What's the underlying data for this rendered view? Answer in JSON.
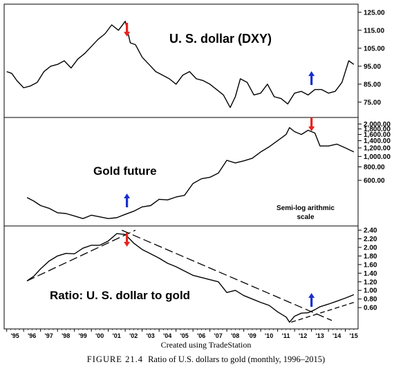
{
  "chart_data": [
    {
      "type": "line",
      "title": "U. S. dollar (DXY)",
      "y_ticks": [
        "125.00",
        "115.00",
        "105.00",
        "95.00",
        "85.00",
        "75.00"
      ],
      "y_tick_values": [
        125,
        115,
        105,
        95,
        85,
        75
      ],
      "ylim": [
        68,
        128
      ],
      "series": [
        {
          "x": [
            1995.0,
            1995.3,
            1995.6,
            1996.0,
            1996.4,
            1996.8,
            1997.2,
            1997.6,
            1998.0,
            1998.4,
            1998.8,
            1999.2,
            1999.6,
            2000.0,
            2000.4,
            2000.8,
            2001.2,
            2001.6,
            2002.0,
            2002.3,
            2002.6,
            2003.0,
            2003.4,
            2003.8,
            2004.2,
            2004.6,
            2005.0,
            2005.4,
            2005.8,
            2006.2,
            2006.6,
            2007.0,
            2007.4,
            2007.8,
            2008.2,
            2008.5,
            2008.8,
            2009.2,
            2009.6,
            2010.0,
            2010.4,
            2010.8,
            2011.2,
            2011.6,
            2012.0,
            2012.4,
            2012.8,
            2013.2,
            2013.6,
            2014.0,
            2014.4,
            2014.8,
            2015.2,
            2015.5
          ],
          "values": [
            92,
            91,
            87,
            83,
            84,
            86,
            92,
            95,
            96,
            98,
            94,
            99,
            102,
            106,
            110,
            113,
            118,
            115,
            120,
            108,
            107,
            100,
            96,
            92,
            90,
            88,
            85,
            90,
            92,
            88,
            87,
            85,
            82,
            79,
            72,
            78,
            88,
            86,
            79,
            80,
            85,
            78,
            77,
            74,
            80,
            81,
            79,
            82,
            82,
            80,
            81,
            86,
            98,
            96
          ]
        }
      ],
      "annotations": [
        {
          "x": 2002.1,
          "direction": "down",
          "color": "#e8231e"
        },
        {
          "x": 2013.0,
          "direction": "up",
          "color": "#1a2fd0"
        }
      ]
    },
    {
      "type": "line",
      "title": "Gold future",
      "y_ticks": [
        "2,000.00",
        "1,800.00",
        "1,600.00",
        "1,400.00",
        "1,200.00",
        "1,000.00",
        "800.00",
        "600.00"
      ],
      "y_tick_values": [
        2000,
        1800,
        1600,
        1400,
        1200,
        1000,
        800,
        600
      ],
      "ylim": [
        240,
        2200
      ],
      "y_scale": "log",
      "note": "Semi-logarithmic scale",
      "note_lines": [
        "Semi-log arithmic",
        "scale"
      ],
      "series": [
        {
          "x": [
            1996.2,
            1996.6,
            1997.0,
            1997.5,
            1998.0,
            1998.5,
            1999.0,
            1999.5,
            2000.0,
            2000.5,
            2001.0,
            2001.5,
            2002.0,
            2002.5,
            2003.0,
            2003.5,
            2004.0,
            2004.5,
            2005.0,
            2005.5,
            2006.0,
            2006.5,
            2007.0,
            2007.5,
            2008.0,
            2008.5,
            2009.0,
            2009.5,
            2010.0,
            2010.5,
            2011.0,
            2011.5,
            2011.7,
            2012.0,
            2012.4,
            2012.8,
            2013.2,
            2013.5,
            2014.0,
            2014.5,
            2015.0,
            2015.5
          ],
          "values": [
            415,
            385,
            350,
            330,
            300,
            295,
            280,
            265,
            285,
            275,
            265,
            270,
            290,
            310,
            340,
            350,
            400,
            395,
            420,
            435,
            560,
            620,
            640,
            700,
            920,
            870,
            910,
            960,
            1100,
            1230,
            1400,
            1600,
            1850,
            1700,
            1600,
            1750,
            1650,
            1250,
            1250,
            1300,
            1200,
            1100
          ]
        }
      ],
      "annotations": [
        {
          "x": 2002.1,
          "direction": "up",
          "color": "#1a2fd0"
        },
        {
          "x": 2013.0,
          "direction": "down",
          "color": "#e8231e"
        }
      ]
    },
    {
      "type": "line",
      "title": "Ratio: U. S. dollar to gold",
      "y_ticks": [
        "2.40",
        "2.20",
        "2.00",
        "1.80",
        "1.60",
        "1.40",
        "1.20",
        "1.00",
        "0.80",
        "0.60"
      ],
      "y_tick_values": [
        2.4,
        2.2,
        2.0,
        1.8,
        1.6,
        1.4,
        1.2,
        1.0,
        0.8,
        0.6
      ],
      "ylim": [
        0.2,
        2.45
      ],
      "series": [
        {
          "x": [
            1996.2,
            1996.6,
            1997.0,
            1997.5,
            1998.0,
            1998.5,
            1999.0,
            1999.5,
            2000.0,
            2000.5,
            2001.0,
            2001.5,
            2002.0,
            2002.5,
            2003.0,
            2003.5,
            2004.0,
            2004.5,
            2005.0,
            2005.5,
            2006.0,
            2006.5,
            2007.0,
            2007.5,
            2008.0,
            2008.5,
            2009.0,
            2009.5,
            2010.0,
            2010.5,
            2011.0,
            2011.5,
            2011.7,
            2012.0,
            2012.4,
            2012.8,
            2013.2,
            2013.5,
            2014.0,
            2014.5,
            2015.0,
            2015.5
          ],
          "values": [
            1.22,
            1.33,
            1.5,
            1.68,
            1.8,
            1.86,
            1.85,
            1.98,
            2.05,
            2.05,
            2.15,
            2.32,
            2.3,
            2.1,
            1.95,
            1.85,
            1.75,
            1.63,
            1.55,
            1.45,
            1.35,
            1.3,
            1.25,
            1.2,
            0.95,
            1.0,
            0.88,
            0.8,
            0.72,
            0.65,
            0.5,
            0.38,
            0.26,
            0.4,
            0.47,
            0.48,
            0.55,
            0.62,
            0.68,
            0.75,
            0.82,
            0.9
          ]
        }
      ],
      "trendlines": [
        {
          "x": [
            1996.2,
            2002.6
          ],
          "values": [
            1.22,
            2.4
          ],
          "style": "long-dash"
        },
        {
          "x": [
            2001.8,
            2014.2
          ],
          "values": [
            2.4,
            0.3
          ],
          "style": "long-dash"
        },
        {
          "x": [
            2011.8,
            2015.5
          ],
          "values": [
            0.26,
            0.72
          ],
          "style": "dash"
        }
      ],
      "annotations": [
        {
          "x": 2002.1,
          "direction": "down",
          "color": "#e8231e"
        },
        {
          "x": 2013.0,
          "direction": "up",
          "color": "#1a2fd0"
        }
      ]
    }
  ],
  "x_axis": {
    "categories": [
      "'95",
      "'96",
      "'97",
      "'98",
      "'99",
      "'00",
      "'01",
      "'02",
      "'03",
      "'04",
      "'05",
      "'06",
      "'07",
      "'08",
      "'09",
      "'10",
      "'11",
      "'12",
      "'13",
      "'14",
      "'15"
    ],
    "years": [
      1995,
      1996,
      1997,
      1998,
      1999,
      2000,
      2001,
      2002,
      2003,
      2004,
      2005,
      2006,
      2007,
      2008,
      2009,
      2010,
      2011,
      2012,
      2013,
      2014,
      2015
    ]
  },
  "credit": "Created using TradeStation",
  "caption": {
    "label": "FIGURE 21.4",
    "text": "Ratio of U.S. dollars to gold (monthly, 1996–2015)"
  },
  "colors": {
    "line": "#000000",
    "up_arrow": "#1a2fd0",
    "down_arrow": "#e8231e"
  }
}
